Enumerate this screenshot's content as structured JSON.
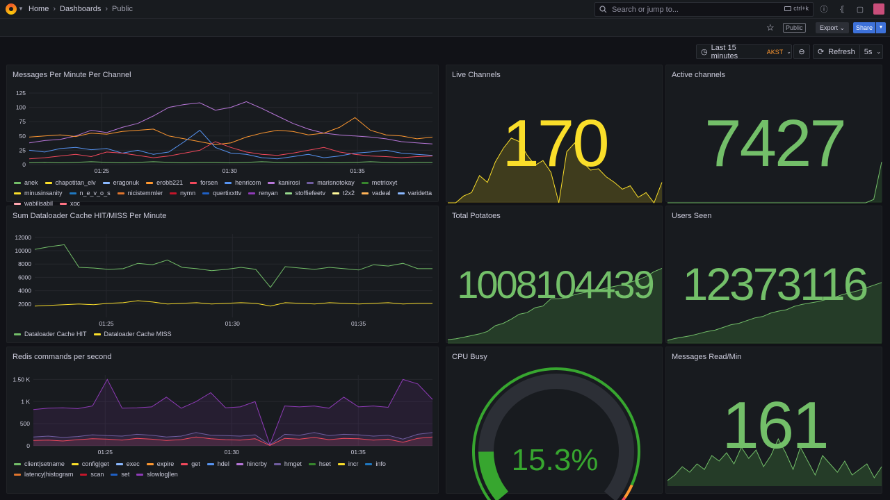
{
  "breadcrumb": {
    "home": "Home",
    "dashboards": "Dashboards",
    "current": "Public"
  },
  "search": {
    "placeholder": "Search or jump to...",
    "shortcut": "ctrl+k"
  },
  "toolbar": {
    "public_badge": "Public",
    "export_label": "Export",
    "share_label": "Share",
    "time_range": "Last 15 minutes",
    "timezone": "AKST",
    "refresh_label": "Refresh",
    "refresh_interval": "5s"
  },
  "colors": {
    "green": "#73bf69",
    "yellow": "#fade2a",
    "orange": "#ff9830",
    "red": "#f2495c",
    "blue": "#5794f2",
    "purple": "#b877d9",
    "panel": "#181b1f",
    "background": "#111217",
    "brand_blue": "#3d71d9"
  },
  "icons": {
    "logo": "grafana-logo-icon",
    "search": "search-icon",
    "keyboard": "keyboard-icon",
    "help": "help-icon",
    "news": "rss-icon",
    "dock": "dock-icon",
    "star": "star-icon",
    "clock": "clock-icon",
    "zoom": "zoom-out-icon",
    "refresh": "refresh-icon"
  },
  "panels": {
    "messages": {
      "title": "Messages Per Minute Per Channel",
      "legend": [
        [
          "anek",
          "#73bf69"
        ],
        [
          "chapotitan_elv",
          "#fade2a"
        ],
        [
          "eragonuk",
          "#8ab8ff"
        ],
        [
          "erobb221",
          "#ff9830"
        ],
        [
          "forsen",
          "#f2495c"
        ],
        [
          "henricom",
          "#5794f2"
        ],
        [
          "kanirosi",
          "#b877d9"
        ],
        [
          "marisnotokay",
          "#705da0"
        ],
        [
          "metrioxyt",
          "#37872d"
        ],
        [
          "minusinsanity",
          "#fade2a"
        ],
        [
          "n_e_v_o_s",
          "#1f78c1"
        ],
        [
          "nicistemmler",
          "#e0752d"
        ],
        [
          "nymn",
          "#c4162a"
        ],
        [
          "quertixxttv",
          "#1f60c4"
        ],
        [
          "renyan",
          "#8f3bb8"
        ],
        [
          "stoffiefeetv",
          "#96d98d"
        ],
        [
          "t2x2",
          "#fff899"
        ],
        [
          "vadeal",
          "#ffb357"
        ],
        [
          "varidetta",
          "#8ab8ff"
        ],
        [
          "wabilisabil",
          "#ffa6b0"
        ],
        [
          "xqc",
          "#ff7383"
        ]
      ]
    },
    "dataloader": {
      "title": "Sum Dataloader Cache HIT/MISS Per Minute",
      "legend": [
        [
          "Dataloader Cache HIT",
          "#73bf69"
        ],
        [
          "Dataloader Cache MISS",
          "#fade2a"
        ]
      ]
    },
    "redis": {
      "title": "Redis commands per second",
      "legend": [
        [
          "client|setname",
          "#73bf69"
        ],
        [
          "config|get",
          "#fade2a"
        ],
        [
          "exec",
          "#8ab8ff"
        ],
        [
          "expire",
          "#ff9830"
        ],
        [
          "get",
          "#f2495c"
        ],
        [
          "hdel",
          "#5794f2"
        ],
        [
          "hincrby",
          "#b877d9"
        ],
        [
          "hmget",
          "#705da0"
        ],
        [
          "hset",
          "#37872d"
        ],
        [
          "incr",
          "#fade2a"
        ],
        [
          "info",
          "#1f78c1"
        ],
        [
          "latency|histogram",
          "#e0752d"
        ],
        [
          "scan",
          "#c4162a"
        ],
        [
          "set",
          "#1f60c4"
        ],
        [
          "slowlog|len",
          "#8f3bb8"
        ]
      ]
    },
    "live": {
      "title": "Live Channels",
      "value": "170"
    },
    "active": {
      "title": "Active channels",
      "value": "7427"
    },
    "potatoes": {
      "title": "Total Potatoes",
      "value": "1008104439"
    },
    "users": {
      "title": "Users Seen",
      "value": "12373116"
    },
    "cpu": {
      "title": "CPU Busy",
      "value": "15.3%",
      "level": 0.153
    },
    "reads": {
      "title": "Messages Read/Min",
      "value": "161"
    }
  },
  "chart_data": [
    {
      "type": "line",
      "title": "Messages Per Minute Per Channel",
      "x_ticks": [
        "01:25",
        "01:30",
        "01:35"
      ],
      "y_ticks": [
        "0",
        "25",
        "50",
        "75",
        "100",
        "125"
      ],
      "ylim": [
        0,
        125
      ],
      "series": [
        {
          "name": "kanirosi",
          "values": [
            38,
            42,
            44,
            50,
            60,
            56,
            65,
            72,
            85,
            100,
            105,
            108,
            95,
            100,
            110,
            98,
            85,
            72,
            62,
            55,
            52,
            50,
            48,
            45,
            40,
            38,
            36
          ]
        },
        {
          "name": "erobb221",
          "values": [
            48,
            50,
            52,
            49,
            55,
            53,
            58,
            60,
            62,
            50,
            45,
            40,
            35,
            38,
            48,
            55,
            60,
            58,
            52,
            55,
            65,
            82,
            60,
            52,
            50,
            45,
            48
          ]
        },
        {
          "name": "henricom",
          "values": [
            25,
            22,
            28,
            30,
            26,
            28,
            20,
            25,
            18,
            22,
            40,
            60,
            30,
            20,
            18,
            12,
            10,
            14,
            18,
            12,
            15,
            20,
            22,
            25,
            20,
            18,
            16
          ]
        },
        {
          "name": "forsen",
          "values": [
            10,
            12,
            15,
            18,
            14,
            22,
            20,
            16,
            12,
            15,
            20,
            25,
            40,
            30,
            22,
            18,
            16,
            20,
            25,
            30,
            22,
            18,
            15,
            14,
            12,
            14,
            15
          ]
        },
        {
          "name": "anek",
          "values": [
            3,
            4,
            3,
            4,
            5,
            4,
            3,
            4,
            5,
            4,
            3,
            4,
            4,
            3,
            4,
            5,
            4,
            3,
            4,
            4,
            3,
            4,
            5,
            4,
            3,
            4,
            4
          ]
        }
      ]
    },
    {
      "type": "line",
      "title": "Sum Dataloader Cache HIT/MISS Per Minute",
      "x_ticks": [
        "01:25",
        "01:30",
        "01:35"
      ],
      "y_ticks": [
        "2000",
        "4000",
        "6000",
        "8000",
        "10000",
        "12000"
      ],
      "ylim": [
        0,
        12500
      ],
      "series": [
        {
          "name": "Dataloader Cache HIT",
          "values": [
            10200,
            10600,
            10900,
            7500,
            7400,
            7200,
            7300,
            8100,
            7900,
            8600,
            7500,
            7300,
            7000,
            7200,
            7500,
            7200,
            4500,
            7600,
            7400,
            7200,
            7500,
            7300,
            7100,
            7900,
            7700,
            8100,
            7300,
            7300
          ]
        },
        {
          "name": "Dataloader Cache MISS",
          "values": [
            1700,
            1800,
            1900,
            2000,
            1900,
            2100,
            2200,
            2500,
            2300,
            2000,
            2100,
            2200,
            2000,
            2100,
            2200,
            2100,
            1700,
            2200,
            2100,
            2000,
            2200,
            2100,
            2000,
            2100,
            2200,
            2000,
            2100,
            2100
          ]
        }
      ]
    },
    {
      "type": "area",
      "title": "Redis commands per second",
      "x_ticks": [
        "01:25",
        "01:30",
        "01:35"
      ],
      "y_ticks": [
        "0",
        "500",
        "1 K",
        "1.50 K"
      ],
      "ylim": [
        0,
        1600
      ],
      "series": [
        {
          "name": "slowlog|len",
          "values": [
            820,
            850,
            860,
            840,
            900,
            1500,
            850,
            860,
            880,
            1100,
            850,
            1000,
            1200,
            860,
            880,
            1000,
            30,
            900,
            880,
            900,
            850,
            1100,
            880,
            900,
            870,
            1500,
            1400,
            1050
          ]
        },
        {
          "name": "hmget",
          "values": [
            200,
            220,
            190,
            210,
            250,
            230,
            220,
            260,
            240,
            200,
            220,
            300,
            240,
            230,
            220,
            250,
            20,
            260,
            240,
            300,
            230,
            260,
            250,
            220,
            240,
            150,
            260,
            300
          ]
        },
        {
          "name": "get",
          "values": [
            120,
            130,
            110,
            140,
            160,
            150,
            130,
            170,
            150,
            120,
            140,
            200,
            160,
            140,
            130,
            160,
            10,
            170,
            150,
            190,
            140,
            170,
            160,
            130,
            150,
            80,
            170,
            200
          ]
        }
      ]
    },
    {
      "type": "area",
      "title": "Live Channels",
      "values": [
        0,
        0,
        10,
        15,
        40,
        30,
        60,
        80,
        95,
        90,
        70,
        55,
        62,
        45,
        0,
        75,
        88,
        60,
        48,
        50,
        38,
        30,
        20,
        25,
        8,
        15,
        0,
        30
      ]
    },
    {
      "type": "area",
      "title": "Active channels",
      "values": [
        0,
        0,
        0,
        0,
        0,
        0,
        0,
        0,
        0,
        0,
        0,
        0,
        0,
        0,
        0,
        0,
        0,
        0,
        0,
        0,
        0,
        0,
        0,
        0,
        0,
        0,
        5,
        60
      ]
    },
    {
      "type": "area",
      "title": "Total Potatoes",
      "values": [
        5,
        6,
        8,
        10,
        12,
        15,
        22,
        25,
        30,
        36,
        38,
        44,
        46,
        55,
        55,
        56,
        60,
        62,
        64,
        66,
        68,
        70,
        72,
        75,
        78,
        82,
        88,
        92
      ]
    },
    {
      "type": "area",
      "title": "Users Seen",
      "values": [
        5,
        8,
        10,
        12,
        15,
        18,
        20,
        24,
        28,
        30,
        34,
        38,
        40,
        45,
        48,
        50,
        55,
        58,
        60,
        62,
        65,
        68,
        72,
        75,
        78,
        82,
        86,
        90
      ]
    },
    {
      "type": "area",
      "title": "Messages Read/Min",
      "values": [
        10,
        20,
        35,
        25,
        40,
        30,
        55,
        45,
        60,
        40,
        70,
        50,
        65,
        35,
        55,
        85,
        60,
        30,
        70,
        45,
        20,
        55,
        40,
        25,
        45,
        20,
        30,
        40,
        15,
        35
      ]
    }
  ]
}
